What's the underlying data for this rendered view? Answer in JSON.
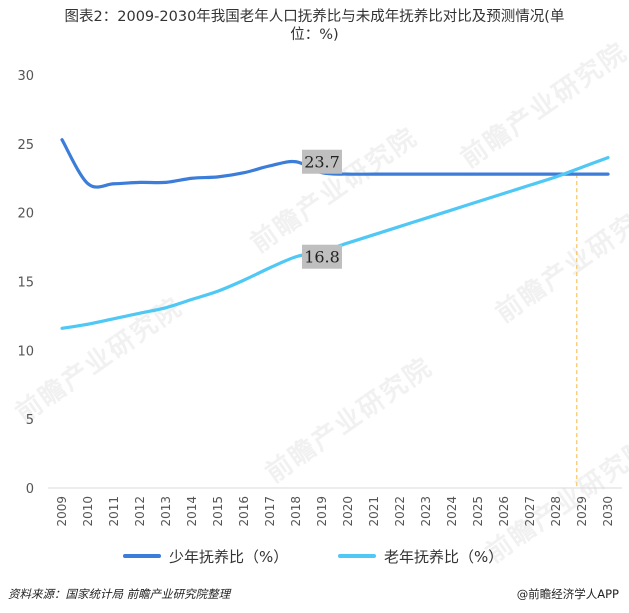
{
  "header": {
    "title_line1": "图表2：2009-2030年我国老年人口抚养比与未成年抚养比对比及预测情况(单",
    "title_line2": "位：%)"
  },
  "footer": {
    "source": "资料来源：国家统计局 前瞻产业研究院整理",
    "brand": "@前瞻经济学人APP"
  },
  "watermark": "前瞻产业研究院",
  "colors": {
    "series1": "#3b7dd8",
    "series2": "#4fc8f5",
    "axis": "#d9d9d9",
    "guide": "#f5b942",
    "label_bg": "#bfbfbf"
  },
  "chart_data": {
    "type": "line",
    "categories": [
      "2009",
      "2010",
      "2011",
      "2012",
      "2013",
      "2014",
      "2015",
      "2016",
      "2017",
      "2018",
      "2019",
      "2020",
      "2021",
      "2022",
      "2023",
      "2024",
      "2025",
      "2026",
      "2027",
      "2028",
      "2029",
      "2030"
    ],
    "ylim": [
      0,
      30
    ],
    "yticks": [
      "0",
      "5",
      "10",
      "15",
      "20",
      "25",
      "30"
    ],
    "grid": false,
    "legend": "bottom",
    "series": [
      {
        "name": "少年抚养比（%）",
        "values": [
          25.3,
          22.1,
          22.1,
          22.2,
          22.2,
          22.5,
          22.6,
          22.9,
          23.4,
          23.7,
          22.9,
          22.8,
          22.8,
          22.8,
          22.8,
          22.8,
          22.8,
          22.8,
          22.8,
          22.8,
          22.8,
          22.8
        ]
      },
      {
        "name": "老年抚养比（%）",
        "values": [
          11.6,
          11.9,
          12.3,
          12.7,
          13.1,
          13.7,
          14.3,
          15.1,
          16.0,
          16.8,
          17.2,
          17.8,
          18.4,
          19.0,
          19.6,
          20.2,
          20.8,
          21.4,
          22.0,
          22.6,
          23.3,
          24.0
        ]
      }
    ],
    "annotations": [
      {
        "series": 0,
        "x": "2018",
        "text": "23.7"
      },
      {
        "series": 1,
        "x": "2018",
        "text": "16.8"
      }
    ],
    "crossover_x": 28.8
  }
}
